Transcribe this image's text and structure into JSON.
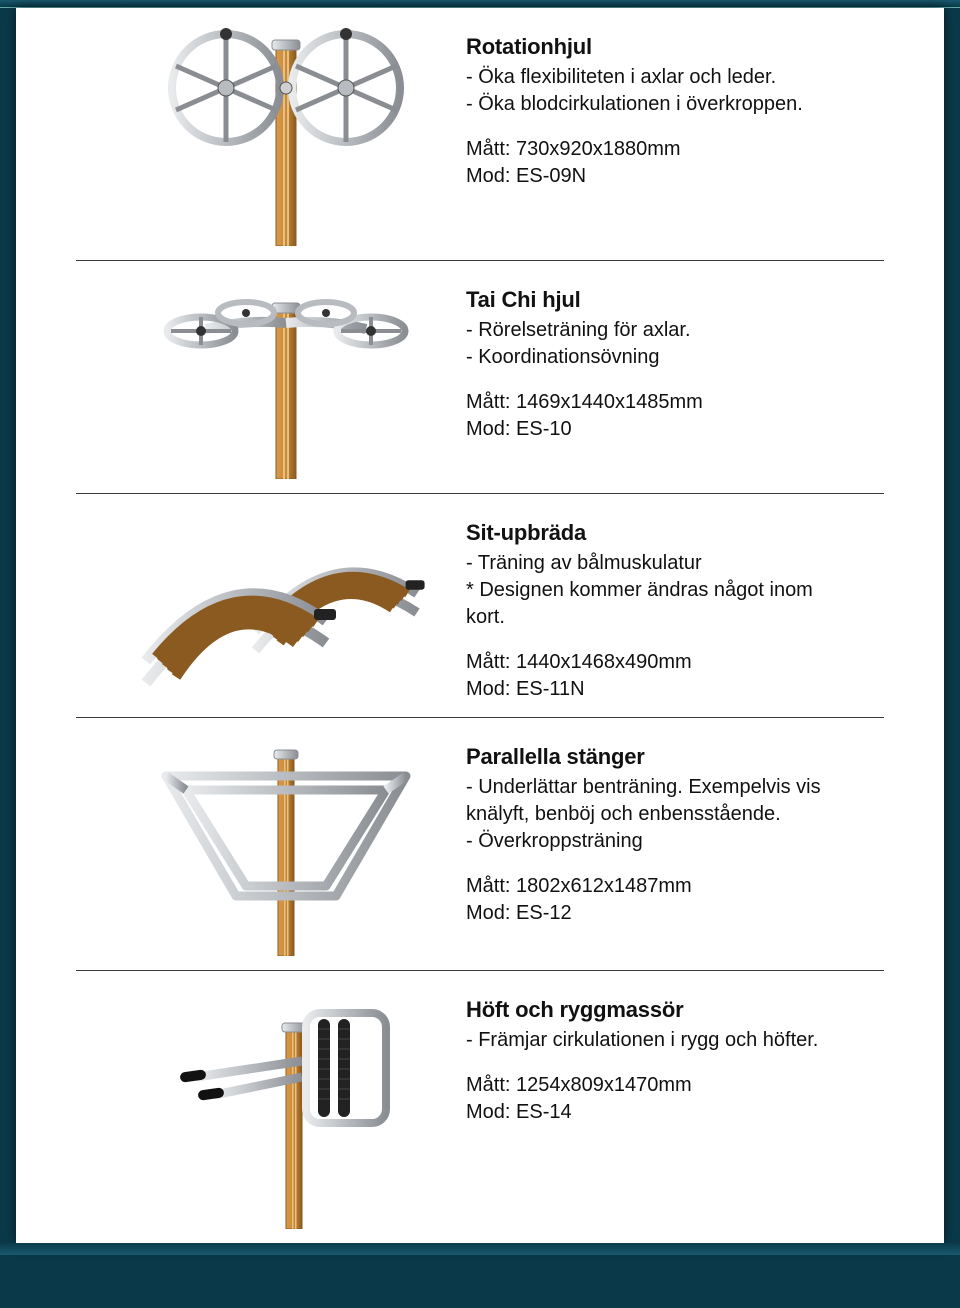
{
  "colors": {
    "page_bg": "#0a3a4a",
    "card_bg": "#ffffff",
    "text": "#111111",
    "rule": "#3a3a3a",
    "metal": "#b8bcc0",
    "metal_dark": "#8a8e92",
    "metal_light": "#e8eaec",
    "wood": "#c98a3a",
    "wood_dark": "#8a5a20",
    "black": "#1a1a1a"
  },
  "items": [
    {
      "title": "Rotationhjul",
      "desc": "- Öka flexibiliteten i axlar och leder.\n- Öka blodcirkulationen i överkroppen.",
      "matt": "Mått: 730x920x1880mm",
      "mod": "Mod: ES-09N",
      "icon": "rotation-wheel"
    },
    {
      "title": "Tai Chi hjul",
      "desc": "- Rörelseträning för axlar.\n- Koordinationsövning",
      "matt": "Mått: 1469x1440x1485mm",
      "mod": "Mod: ES-10",
      "icon": "taichi-wheel"
    },
    {
      "title": "Sit-upbräda",
      "desc": "- Träning av bålmuskulatur\n* Designen kommer ändras något inom kort.",
      "matt": "Mått: 1440x1468x490mm",
      "mod": "Mod: ES-11N",
      "icon": "situp-board"
    },
    {
      "title": "Parallella stänger",
      "desc": "- Underlättar benträning. Exempelvis vis knälyft, benböj och enbensstående.\n- Överkroppsträning",
      "matt": "Mått: 1802x612x1487mm",
      "mod": "Mod: ES-12",
      "icon": "parallel-bars"
    },
    {
      "title": "Höft och ryggmassör",
      "desc": "- Främjar cirkulationen i rygg och höfter.",
      "matt": "Mått: 1254x809x1470mm",
      "mod": "Mod: ES-14",
      "icon": "hip-massage"
    }
  ]
}
